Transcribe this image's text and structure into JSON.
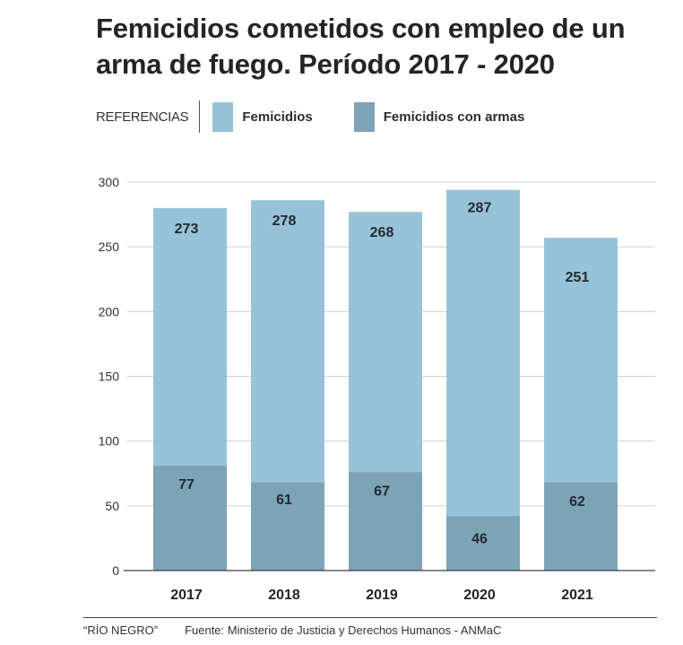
{
  "chart_data": {
    "type": "bar",
    "stacked": "overlay",
    "title": "Femicidios cometidos con empleo de un arma de fuego. Período 2017 - 2020",
    "xlabel": "",
    "ylabel": "",
    "ylim": [
      0,
      300
    ],
    "yticks": [
      0,
      50,
      100,
      150,
      200,
      250,
      300
    ],
    "grid": true,
    "legend_position": "top-left",
    "categories": [
      "2017",
      "2018",
      "2019",
      "2020",
      "2021"
    ],
    "series": [
      {
        "name": "Femicidios",
        "color": "#97c3d9",
        "values": [
          273,
          278,
          268,
          287,
          251
        ],
        "display_heights": [
          280,
          286,
          277,
          294,
          257
        ]
      },
      {
        "name": "Femicidios con armas",
        "color": "#7da3b7",
        "values": [
          77,
          61,
          67,
          46,
          62
        ],
        "display_heights": [
          81,
          68,
          76,
          42,
          68
        ]
      }
    ]
  },
  "legend": {
    "heading": "REFERENCIAS",
    "items": [
      {
        "label": "Femicidios",
        "color": "#97c3d9"
      },
      {
        "label": "Femicidios con armas",
        "color": "#7da3b7"
      }
    ]
  },
  "footer": {
    "publisher": "“RÍO NEGRO”",
    "source": "Fuente: Ministerio de Justicia y Derechos Humanos - ANMaC"
  }
}
